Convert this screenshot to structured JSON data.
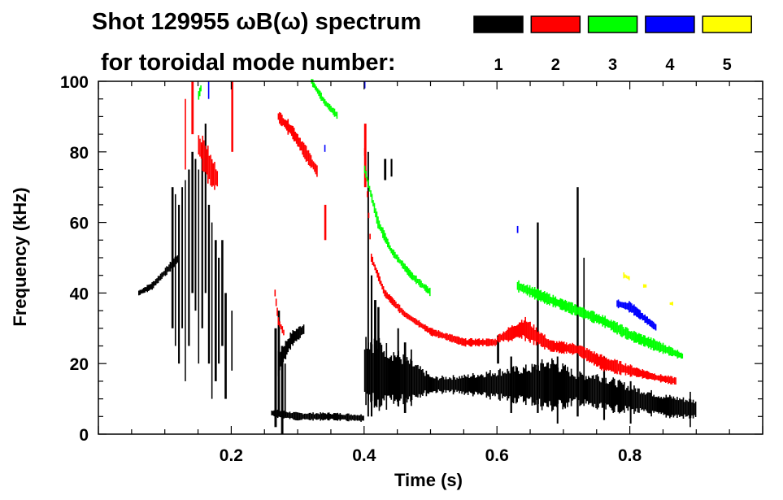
{
  "chart_data": {
    "type": "heatmap",
    "title_line1": "Shot 129955 ωB(ω) spectrum",
    "title_line2": "for toroidal mode number:",
    "xlabel": "Time (s)",
    "ylabel": "Frequency (kHz)",
    "xlim": [
      0,
      1.0
    ],
    "ylim": [
      0,
      100
    ],
    "x_ticks": [
      {
        "v": 0.2,
        "label": "0.2"
      },
      {
        "v": 0.4,
        "label": "0.4"
      },
      {
        "v": 0.6,
        "label": "0.6"
      },
      {
        "v": 0.8,
        "label": "0.8"
      }
    ],
    "y_ticks": [
      {
        "v": 0,
        "label": "0"
      },
      {
        "v": 20,
        "label": "20"
      },
      {
        "v": 40,
        "label": "40"
      },
      {
        "v": 60,
        "label": "60"
      },
      {
        "v": 80,
        "label": "80"
      },
      {
        "v": 100,
        "label": "100"
      }
    ],
    "x_minor_step": 0.05,
    "y_minor_step": 5,
    "legend": [
      {
        "mode": "1",
        "color": "#000000"
      },
      {
        "mode": "2",
        "color": "#ff0000"
      },
      {
        "mode": "3",
        "color": "#00ff00"
      },
      {
        "mode": "4",
        "color": "#0000ff"
      },
      {
        "mode": "5",
        "color": "#ffff00"
      }
    ],
    "series": [
      {
        "mode": "1",
        "color": "#000000",
        "traces": [
          [
            [
              0.06,
              40,
              1.5
            ],
            [
              0.08,
              42,
              2
            ],
            [
              0.1,
              46,
              2
            ],
            [
              0.12,
              50,
              3
            ]
          ],
          [
            [
              0.27,
              20,
              6
            ],
            [
              0.29,
              27,
              4
            ],
            [
              0.31,
              30,
              3
            ]
          ],
          [
            [
              0.26,
              6,
              2
            ],
            [
              0.3,
              5,
              2
            ],
            [
              0.35,
              5,
              2
            ],
            [
              0.4,
              4.5,
              2
            ]
          ],
          [
            [
              0.4,
              18,
              20
            ],
            [
              0.44,
              16,
              16
            ],
            [
              0.48,
              15,
              8
            ],
            [
              0.5,
              14,
              5
            ]
          ],
          [
            [
              0.5,
              14,
              4
            ],
            [
              0.55,
              14,
              5
            ],
            [
              0.6,
              14,
              8
            ],
            [
              0.65,
              14,
              10
            ],
            [
              0.68,
              14,
              14
            ],
            [
              0.72,
              13,
              8
            ],
            [
              0.75,
              12,
              10
            ],
            [
              0.8,
              10,
              7
            ],
            [
              0.85,
              8,
              6
            ],
            [
              0.9,
              7,
              5
            ]
          ]
        ],
        "streaks": [
          [
            0.11,
            30,
            70
          ],
          [
            0.115,
            25,
            68
          ],
          [
            0.12,
            20,
            65
          ],
          [
            0.125,
            30,
            70
          ],
          [
            0.13,
            15,
            72
          ],
          [
            0.135,
            25,
            75
          ],
          [
            0.14,
            40,
            80
          ],
          [
            0.145,
            35,
            78
          ],
          [
            0.15,
            20,
            75
          ],
          [
            0.155,
            30,
            82
          ],
          [
            0.16,
            40,
            88
          ],
          [
            0.165,
            20,
            65
          ],
          [
            0.17,
            10,
            60
          ],
          [
            0.175,
            15,
            55
          ],
          [
            0.18,
            20,
            50
          ],
          [
            0.185,
            25,
            55
          ],
          [
            0.19,
            10,
            40
          ],
          [
            0.2,
            18,
            35
          ],
          [
            0.265,
            2,
            30
          ],
          [
            0.27,
            5,
            35
          ],
          [
            0.275,
            0,
            25
          ],
          [
            0.28,
            5,
            20
          ],
          [
            0.405,
            5,
            80
          ],
          [
            0.41,
            5,
            45
          ],
          [
            0.415,
            8,
            38
          ],
          [
            0.42,
            10,
            36
          ],
          [
            0.43,
            72,
            78
          ],
          [
            0.44,
            73,
            78
          ],
          [
            0.45,
            8,
            30
          ],
          [
            0.46,
            6,
            26
          ],
          [
            0.47,
            8,
            24
          ],
          [
            0.6,
            20,
            28
          ],
          [
            0.62,
            6,
            22
          ],
          [
            0.66,
            6,
            60
          ],
          [
            0.69,
            3,
            22
          ],
          [
            0.72,
            5,
            70
          ],
          [
            0.73,
            8,
            50
          ],
          [
            0.76,
            4,
            22
          ],
          [
            0.8,
            3,
            15
          ],
          [
            0.89,
            2,
            12
          ]
        ]
      },
      {
        "mode": "2",
        "color": "#ff0000",
        "traces": [
          [
            [
              0.15,
              82,
              6
            ],
            [
              0.16,
              78,
              10
            ],
            [
              0.17,
              74,
              8
            ],
            [
              0.18,
              72,
              6
            ]
          ],
          [
            [
              0.27,
              90,
              3
            ],
            [
              0.29,
              86,
              4
            ],
            [
              0.31,
              80,
              4
            ],
            [
              0.33,
              74,
              3
            ]
          ],
          [
            [
              0.265,
              40,
              2
            ],
            [
              0.27,
              32,
              2
            ],
            [
              0.28,
              28,
              2
            ]
          ],
          [
            [
              0.4,
              80,
              2
            ],
            [
              0.41,
              50,
              2
            ],
            [
              0.43,
              40,
              2
            ],
            [
              0.46,
              34,
              2
            ],
            [
              0.5,
              29,
              2
            ],
            [
              0.55,
              26,
              2
            ],
            [
              0.6,
              26,
              2
            ]
          ],
          [
            [
              0.6,
              27,
              2
            ],
            [
              0.64,
              30,
              6
            ],
            [
              0.68,
              25,
              3
            ],
            [
              0.72,
              24,
              3
            ],
            [
              0.76,
              20,
              4
            ],
            [
              0.8,
              18,
              3
            ],
            [
              0.84,
              16,
              2
            ],
            [
              0.87,
              15,
              2
            ]
          ]
        ],
        "streaks": [
          [
            0.13,
            75,
            95
          ],
          [
            0.14,
            85,
            100
          ],
          [
            0.2,
            80,
            100
          ],
          [
            0.34,
            55,
            65
          ],
          [
            0.4,
            70,
            88
          ]
        ]
      },
      {
        "mode": "3",
        "color": "#00ff00",
        "traces": [
          [
            [
              0.15,
              96,
              3
            ],
            [
              0.155,
              99,
              2
            ]
          ],
          [
            [
              0.32,
              100,
              2
            ],
            [
              0.34,
              94,
              2
            ],
            [
              0.36,
              90,
              2
            ]
          ],
          [
            [
              0.4,
              75,
              2
            ],
            [
              0.42,
              60,
              3
            ],
            [
              0.44,
              52,
              2
            ],
            [
              0.47,
              45,
              2
            ],
            [
              0.5,
              40,
              2
            ]
          ],
          [
            [
              0.63,
              42,
              3
            ],
            [
              0.68,
              38,
              3
            ],
            [
              0.72,
              35,
              3
            ],
            [
              0.76,
              32,
              3
            ],
            [
              0.8,
              28,
              3
            ],
            [
              0.84,
              25,
              3
            ],
            [
              0.88,
              22,
              2
            ]
          ]
        ]
      },
      {
        "mode": "4",
        "color": "#0000ff",
        "traces": [
          [
            [
              0.78,
              37,
              2
            ],
            [
              0.8,
              36,
              3
            ],
            [
              0.82,
              33,
              2
            ],
            [
              0.84,
              30,
              2
            ]
          ]
        ],
        "streaks": [
          [
            0.165,
            95,
            100
          ],
          [
            0.4,
            98,
            100
          ],
          [
            0.63,
            57,
            59
          ],
          [
            0.34,
            80,
            82
          ]
        ]
      },
      {
        "mode": "5",
        "color": "#ffff00",
        "traces": [
          [
            [
              0.79,
              45,
              1.5
            ],
            [
              0.8,
              44,
              1
            ]
          ],
          [
            [
              0.82,
              42,
              1
            ],
            [
              0.825,
              42,
              1
            ]
          ],
          [
            [
              0.86,
              37,
              1
            ],
            [
              0.865,
              37,
              1
            ]
          ]
        ]
      }
    ]
  }
}
